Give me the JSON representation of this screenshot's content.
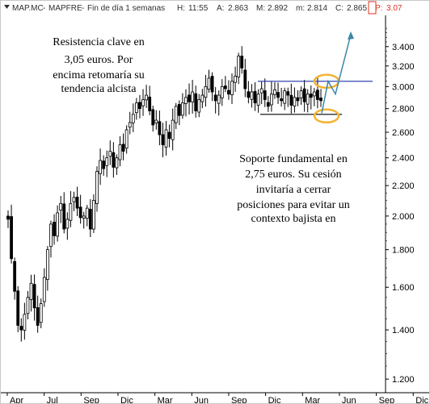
{
  "header": {
    "symbol": "MAP.MC",
    "name": "MAPFRE",
    "period": "Fin de día 1 semanas",
    "readouts": [
      {
        "label": "H:",
        "value": "11:55"
      },
      {
        "label": "A:",
        "value": "2.863"
      },
      {
        "label": "M:",
        "value": "2.892"
      },
      {
        "label": "m:",
        "value": "2.814"
      },
      {
        "label": "C:",
        "value": "2.865"
      },
      {
        "label": "P:",
        "value": "3.07",
        "color": "#e0301e"
      }
    ]
  },
  "annotations": {
    "resistance_text": [
      "Resistencia clave en",
      "3,05 euros. Por",
      "encima retomaría su",
      "tendencia alcista"
    ],
    "support_text": [
      "Soporte fundamental en",
      "2,75 euros. Su cesión",
      "invitaría a cerrar",
      "posiciones para evitar un",
      "contexto bajista en"
    ]
  },
  "colors": {
    "candle": "#000000",
    "resistance_line": "#1f2fa8",
    "support_line": "#000000",
    "ellipse": "#f2b431",
    "arrow": "#3a86a8",
    "background": "#ffffff",
    "axis_box_red": "#e0301e"
  },
  "icons": [
    "chart-menu-icon",
    "price-marker-icon"
  ],
  "chart_data": {
    "type": "candlestick",
    "y_scale": "log",
    "ylim": [
      1.15,
      3.75
    ],
    "y_ticks": [
      1.2,
      1.4,
      1.6,
      1.8,
      2.0,
      2.2,
      2.4,
      2.6,
      2.8,
      3.0,
      3.2,
      3.4
    ],
    "y_tick_labels": [
      "1.200",
      "1.400",
      "1.600",
      "1.800",
      "2.000",
      "2.200",
      "2.400",
      "2.600",
      "2.800",
      "3.000",
      "3.200",
      "3.400"
    ],
    "x_tick_labels": [
      "Apr",
      "Jul",
      "Sep",
      "Dic",
      "Mar",
      "Jun",
      "Sep",
      "Dic",
      "Mar",
      "Jun",
      "Sep",
      "Dic"
    ],
    "levels": {
      "resistance": 3.05,
      "support": 2.75
    },
    "series": [
      {
        "close": [
          1.98,
          1.75,
          1.58,
          1.42,
          1.4,
          1.47,
          1.55,
          1.62,
          1.5,
          1.42,
          1.52,
          1.65,
          1.8,
          1.95,
          1.88,
          2.02,
          2.08,
          1.92,
          1.98,
          2.08,
          2.12,
          2.05,
          1.99,
          2.0,
          2.05,
          1.92,
          2.1,
          2.3,
          2.38,
          2.32,
          2.4,
          2.45,
          2.33,
          2.4,
          2.5,
          2.45,
          2.62,
          2.68,
          2.75,
          2.85,
          2.8,
          2.88,
          2.92,
          2.78,
          2.66,
          2.7,
          2.58,
          2.5,
          2.62,
          2.55,
          2.7,
          2.82,
          2.74,
          2.85,
          2.9,
          2.86,
          2.95,
          2.78,
          2.88,
          2.92,
          3.0,
          3.08,
          2.95,
          2.87,
          2.92,
          3.0,
          2.98,
          2.93,
          3.05,
          3.1,
          3.3,
          3.18,
          2.98,
          2.9,
          2.95,
          2.85,
          2.93,
          2.98,
          2.88,
          2.82,
          2.93,
          2.97,
          2.9,
          2.87,
          2.96,
          2.92,
          2.83,
          2.9,
          2.87,
          2.96,
          2.86,
          2.93,
          2.9,
          2.95,
          2.88,
          2.87
        ]
      }
    ],
    "projection": [
      2.76,
      3.05,
      2.93,
      3.53
    ]
  }
}
